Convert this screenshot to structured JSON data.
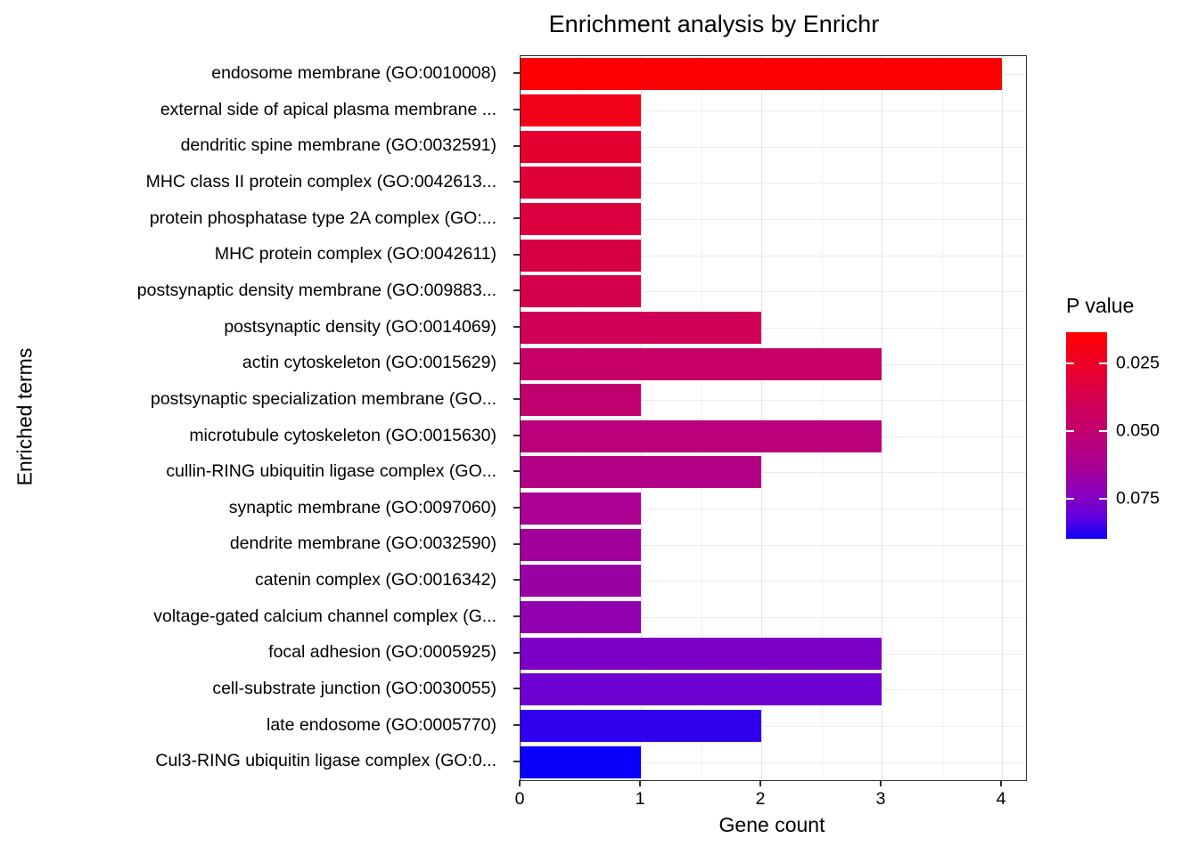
{
  "chart_data": {
    "type": "bar",
    "orientation": "horizontal",
    "title": "Enrichment analysis by Enrichr",
    "xlabel": "Gene count",
    "ylabel": "Enriched terms",
    "xlim": [
      0,
      4.2
    ],
    "x_ticks": [
      "0",
      "1",
      "2",
      "3",
      "4"
    ],
    "grid": true,
    "categories": [
      "endosome membrane (GO:0010008)",
      "external side of apical plasma membrane ...",
      "dendritic spine membrane (GO:0032591)",
      "MHC class II protein complex (GO:0042613...",
      "protein phosphatase type 2A complex (GO:...",
      "MHC protein complex (GO:0042611)",
      "postsynaptic density membrane (GO:009883...",
      "postsynaptic density (GO:0014069)",
      "actin cytoskeleton (GO:0015629)",
      "postsynaptic specialization membrane (GO...",
      "microtubule cytoskeleton (GO:0015630)",
      "cullin-RING ubiquitin ligase complex (GO...",
      "synaptic membrane (GO:0097060)",
      "dendrite membrane (GO:0032590)",
      "catenin complex (GO:0016342)",
      "voltage-gated calcium channel complex (G...",
      "focal adhesion (GO:0005925)",
      "cell-substrate junction (GO:0030055)",
      "late endosome (GO:0005770)",
      "Cul3-RING ubiquitin ligase complex (GO:0..."
    ],
    "values": [
      4,
      1,
      1,
      1,
      1,
      1,
      1,
      2,
      3,
      1,
      3,
      2,
      1,
      1,
      1,
      1,
      3,
      3,
      2,
      1
    ],
    "bar_colors": [
      "#FB0003",
      "#F20019",
      "#E5002F",
      "#E00038",
      "#DC003F",
      "#D80045",
      "#D4004B",
      "#CE0057",
      "#C60067",
      "#C10070",
      "#BA007B",
      "#B20087",
      "#AA0093",
      "#A3009B",
      "#9B00A5",
      "#9100B1",
      "#7C00C7",
      "#6F00D2",
      "#2F00EE",
      "#0900FB"
    ],
    "legend": {
      "title": "P value",
      "position": "right",
      "ticks": [
        {
          "label": "0.025",
          "pos": 0.152
        },
        {
          "label": "0.050",
          "pos": 0.478
        },
        {
          "label": "0.075",
          "pos": 0.804
        }
      ],
      "gradient": [
        {
          "offset": 0.0,
          "color": "#FF0000"
        },
        {
          "offset": 0.15,
          "color": "#EE0026"
        },
        {
          "offset": 0.35,
          "color": "#D10058"
        },
        {
          "offset": 0.5,
          "color": "#C00073"
        },
        {
          "offset": 0.65,
          "color": "#A80095"
        },
        {
          "offset": 0.8,
          "color": "#8400C2"
        },
        {
          "offset": 0.9,
          "color": "#5E00E0"
        },
        {
          "offset": 1.0,
          "color": "#0F00FA"
        }
      ]
    }
  }
}
